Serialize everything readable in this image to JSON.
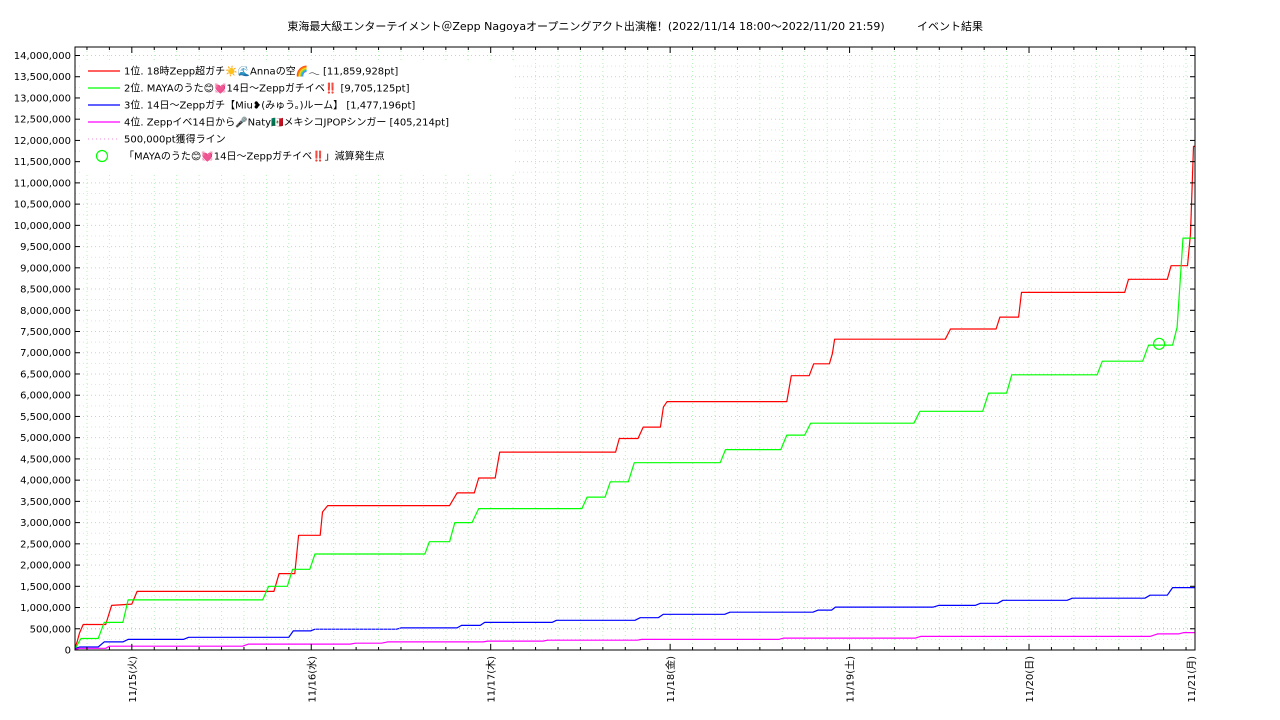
{
  "chart_data": {
    "type": "line",
    "title": "東海最大級エンターテイメント＠Zepp Nagoyaオープニングアクト出演権！(2022/11/14 18:00～2022/11/20 21:59)",
    "subtitle": "イベント結果",
    "xlabel": "",
    "ylabel": "",
    "ylim": [
      0,
      14200000
    ],
    "y_ticks": [
      0,
      500000,
      1000000,
      1500000,
      2000000,
      2500000,
      3000000,
      3500000,
      4000000,
      4500000,
      5000000,
      5500000,
      6000000,
      6500000,
      7000000,
      7500000,
      8000000,
      8500000,
      9000000,
      9500000,
      10000000,
      10500000,
      11000000,
      11500000,
      12000000,
      12500000,
      13000000,
      13500000,
      14000000
    ],
    "y_tick_labels": [
      "0",
      "500,000",
      "1,000,000",
      "1,500,000",
      "2,000,000",
      "2,500,000",
      "3,000,000",
      "3,500,000",
      "4,000,000",
      "4,500,000",
      "5,000,000",
      "5,500,000",
      "6,000,000",
      "6,500,000",
      "7,000,000",
      "7,500,000",
      "8,000,000",
      "8,500,000",
      "9,000,000",
      "9,500,000",
      "10,000,000",
      "10,500,000",
      "11,000,000",
      "11,500,000",
      "12,000,000",
      "12,500,000",
      "13,000,000",
      "13,500,000",
      "14,000,000"
    ],
    "x_unit": "hours",
    "xlim": [
      -1.6,
      148.2
    ],
    "x_ticks": [
      6,
      30,
      54,
      78,
      102,
      126,
      150
    ],
    "x_tick_labels": [
      "11/15(火)",
      "11/16(水)",
      "11/17(木)",
      "11/18(金)",
      "11/19(土)",
      "11/20(日)",
      "11/21(月)"
    ],
    "grid": true,
    "legend_position": "top-left",
    "series": [
      {
        "name": "1位. 18時Zepp超ガチ☀️🌊Annaの空🌈𓂃 [11,859,928pt]",
        "color": "#ff0000",
        "points": [
          [
            -1.6,
            50000
          ],
          [
            -1.3,
            200000
          ],
          [
            -1,
            400000
          ],
          [
            -0.5,
            600000
          ],
          [
            2.5,
            600000
          ],
          [
            3.3,
            1050000
          ],
          [
            6,
            1080000
          ],
          [
            6.7,
            1380000
          ],
          [
            25,
            1380000
          ],
          [
            25.7,
            1800000
          ],
          [
            27.8,
            1800000
          ],
          [
            28.3,
            2700000
          ],
          [
            31.2,
            2700000
          ],
          [
            31.5,
            3250000
          ],
          [
            32.2,
            3400000
          ],
          [
            48.5,
            3400000
          ],
          [
            49.5,
            3700000
          ],
          [
            51.8,
            3700000
          ],
          [
            52.4,
            4050000
          ],
          [
            54.6,
            4050000
          ],
          [
            55.2,
            4660000
          ],
          [
            70.7,
            4660000
          ],
          [
            71.2,
            4980000
          ],
          [
            73.7,
            4980000
          ],
          [
            74.4,
            5250000
          ],
          [
            76.7,
            5250000
          ],
          [
            77.1,
            5720000
          ],
          [
            77.6,
            5850000
          ],
          [
            93.6,
            5850000
          ],
          [
            94.2,
            6460000
          ],
          [
            96.6,
            6460000
          ],
          [
            97.2,
            6740000
          ],
          [
            99.3,
            6740000
          ],
          [
            99.7,
            6980000
          ],
          [
            100,
            7320000
          ],
          [
            114.8,
            7320000
          ],
          [
            115.5,
            7560000
          ],
          [
            121.6,
            7560000
          ],
          [
            122.1,
            7840000
          ],
          [
            124.6,
            7840000
          ],
          [
            125,
            8420000
          ],
          [
            138.8,
            8420000
          ],
          [
            139.3,
            8730000
          ],
          [
            144.5,
            8730000
          ],
          [
            145,
            9050000
          ],
          [
            147.2,
            9050000
          ],
          [
            147.6,
            9800000
          ],
          [
            148,
            11860000
          ],
          [
            148.2,
            11860000
          ]
        ]
      },
      {
        "name": "2位. MAYAのうた😊💓14日〜Zeppガチイベ‼️ [9,705,125pt]",
        "color": "#00ff00",
        "points": [
          [
            -1.6,
            20000
          ],
          [
            -1.2,
            150000
          ],
          [
            -0.8,
            270000
          ],
          [
            1.5,
            270000
          ],
          [
            2.3,
            650000
          ],
          [
            4.8,
            650000
          ],
          [
            5.5,
            1180000
          ],
          [
            23.5,
            1180000
          ],
          [
            24.3,
            1500000
          ],
          [
            26.8,
            1500000
          ],
          [
            27.5,
            1900000
          ],
          [
            29.8,
            1900000
          ],
          [
            30.5,
            2260000
          ],
          [
            45.2,
            2260000
          ],
          [
            45.8,
            2550000
          ],
          [
            48.5,
            2550000
          ],
          [
            49.2,
            3000000
          ],
          [
            51.5,
            3000000
          ],
          [
            52.4,
            3330000
          ],
          [
            66.2,
            3330000
          ],
          [
            66.9,
            3600000
          ],
          [
            69.3,
            3600000
          ],
          [
            70,
            3960000
          ],
          [
            72.4,
            3960000
          ],
          [
            73.2,
            4410000
          ],
          [
            84.7,
            4410000
          ],
          [
            85.4,
            4720000
          ],
          [
            92.8,
            4720000
          ],
          [
            93.6,
            5060000
          ],
          [
            96,
            5060000
          ],
          [
            96.8,
            5340000
          ],
          [
            110.6,
            5340000
          ],
          [
            111.4,
            5620000
          ],
          [
            119.8,
            5620000
          ],
          [
            120.6,
            6050000
          ],
          [
            123,
            6050000
          ],
          [
            123.7,
            6480000
          ],
          [
            135.1,
            6480000
          ],
          [
            135.8,
            6800000
          ],
          [
            141.2,
            6800000
          ],
          [
            142,
            7180000
          ],
          [
            145.2,
            7180000
          ],
          [
            145.8,
            7600000
          ],
          [
            146.6,
            9700000
          ],
          [
            148.2,
            9700000
          ]
        ]
      },
      {
        "name": "3位. 14日〜Zeppガチ【Miu❥(みゅう。)ルーム】 [1,477,196pt]",
        "color": "#0000ff",
        "points": [
          [
            -1.6,
            30000
          ],
          [
            -1,
            70000
          ],
          [
            1.5,
            70000
          ],
          [
            2.3,
            190000
          ],
          [
            4.8,
            190000
          ],
          [
            5.5,
            250000
          ],
          [
            12.9,
            250000
          ],
          [
            13.6,
            300000
          ],
          [
            27,
            300000
          ],
          [
            27.6,
            450000
          ],
          [
            29.9,
            450000
          ],
          [
            30.5,
            490000
          ],
          [
            41.4,
            490000
          ],
          [
            42,
            520000
          ],
          [
            49.5,
            520000
          ],
          [
            50.1,
            580000
          ],
          [
            52.6,
            580000
          ],
          [
            53.2,
            650000
          ],
          [
            62.2,
            650000
          ],
          [
            62.8,
            700000
          ],
          [
            73.3,
            700000
          ],
          [
            74,
            760000
          ],
          [
            76.4,
            760000
          ],
          [
            77.1,
            840000
          ],
          [
            85.3,
            840000
          ],
          [
            86,
            890000
          ],
          [
            97.1,
            890000
          ],
          [
            97.8,
            940000
          ],
          [
            99.6,
            940000
          ],
          [
            100.1,
            1010000
          ],
          [
            113.2,
            1010000
          ],
          [
            113.9,
            1050000
          ],
          [
            118.8,
            1050000
          ],
          [
            119.5,
            1100000
          ],
          [
            121.8,
            1100000
          ],
          [
            122.5,
            1170000
          ],
          [
            131.1,
            1170000
          ],
          [
            131.8,
            1220000
          ],
          [
            141.5,
            1220000
          ],
          [
            142.2,
            1290000
          ],
          [
            144.5,
            1290000
          ],
          [
            145.2,
            1470000
          ],
          [
            148.2,
            1470000
          ]
        ]
      },
      {
        "name": "4位. Zeppイベ14日から🎤Naty🇲🇽メキシコJPOPシンガー [405,214pt]",
        "color": "#ff00ff",
        "points": [
          [
            -1.6,
            10000
          ],
          [
            -1,
            40000
          ],
          [
            2.5,
            40000
          ],
          [
            3,
            90000
          ],
          [
            20.8,
            90000
          ],
          [
            21.6,
            140000
          ],
          [
            35.2,
            140000
          ],
          [
            35.9,
            160000
          ],
          [
            39.4,
            160000
          ],
          [
            40.2,
            190000
          ],
          [
            53,
            190000
          ],
          [
            53.6,
            210000
          ],
          [
            61,
            210000
          ],
          [
            61.6,
            230000
          ],
          [
            73.6,
            230000
          ],
          [
            74.2,
            250000
          ],
          [
            92.5,
            250000
          ],
          [
            93.2,
            280000
          ],
          [
            110.8,
            280000
          ],
          [
            111.5,
            320000
          ],
          [
            142.2,
            320000
          ],
          [
            143.2,
            380000
          ],
          [
            146,
            380000
          ],
          [
            146.7,
            410000
          ],
          [
            148.2,
            410000
          ]
        ]
      },
      {
        "name": "500,000pt獲得ライン",
        "color": "#f2a2e4",
        "style": "dotted",
        "points": [
          [
            -1.6,
            500000
          ],
          [
            148.2,
            500000
          ]
        ]
      }
    ],
    "markers": [
      {
        "name": "「MAYAのうた😊💓14日〜Zeppガチイベ‼️」減算発生点",
        "color": "#00ff00",
        "shape": "circle",
        "x": 143.4,
        "y": 7210000
      }
    ]
  }
}
